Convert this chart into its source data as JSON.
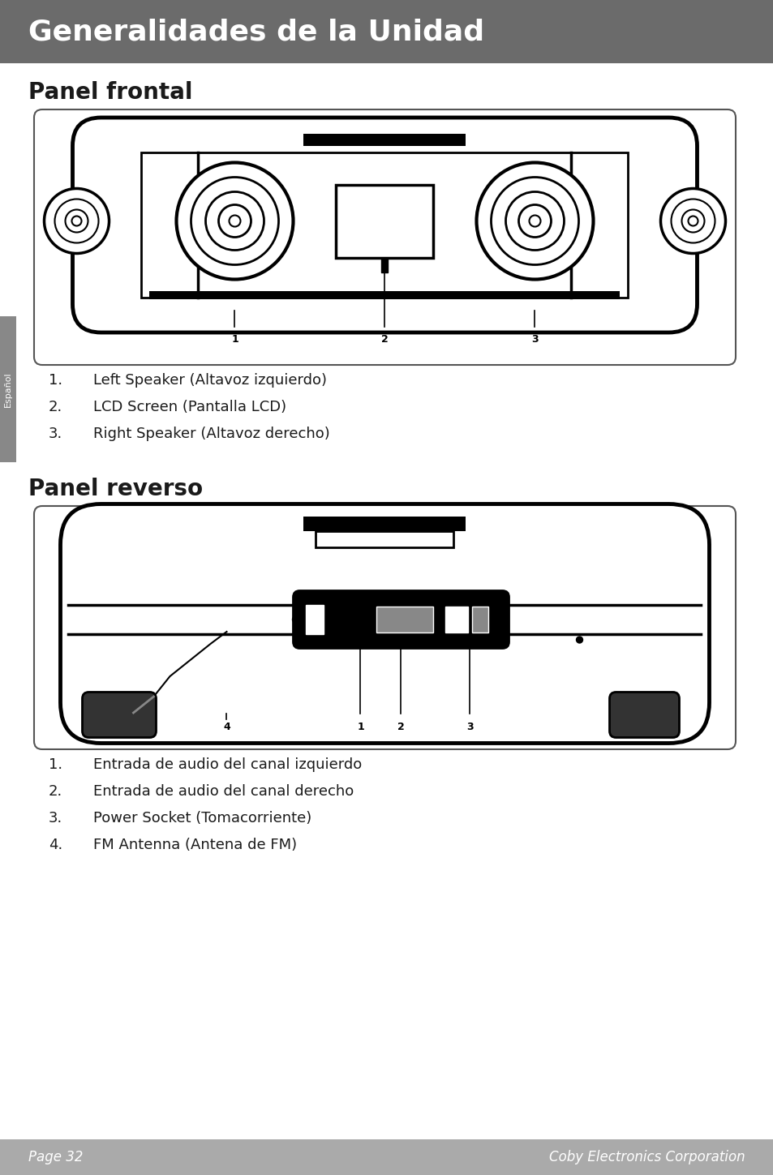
{
  "title": "Generalidades de la Unidad",
  "title_bg": "#6b6b6b",
  "title_color": "#ffffff",
  "title_fontsize": 26,
  "section1_title": "Panel frontal",
  "section2_title": "Panel reverso",
  "section_fontsize": 20,
  "body_fontsize": 13,
  "sidebar_text": "Español",
  "sidebar_bg": "#888888",
  "sidebar_text_color": "#ffffff",
  "footer_bg": "#aaaaaa",
  "footer_left": "Page 32",
  "footer_right": "Coby Electronics Corporation",
  "footer_fontsize": 12,
  "front_items": [
    "Left Speaker (Altavoz izquierdo)",
    "LCD Screen (Pantalla LCD)",
    "Right Speaker (Altavoz derecho)"
  ],
  "back_items": [
    "Entrada de audio del canal izquierdo",
    "Entrada de audio del canal derecho",
    "Power Socket (Tomacorriente)",
    "FM Antenna (Antena de FM)"
  ],
  "page_bg": "#ffffff"
}
